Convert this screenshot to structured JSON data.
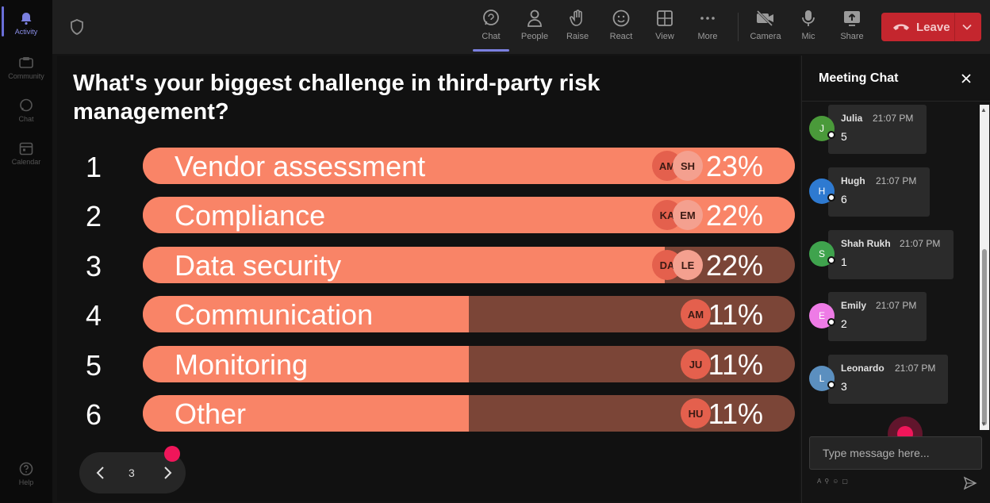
{
  "rail": {
    "items": [
      {
        "label": "Activity",
        "icon": "bell-icon"
      },
      {
        "label": "Community",
        "icon": "community-icon"
      },
      {
        "label": "Chat",
        "icon": "chat-icon"
      },
      {
        "label": "Calendar",
        "icon": "calendar-icon"
      },
      {
        "label": "Help",
        "icon": "help-icon"
      }
    ]
  },
  "toolbar": {
    "chat": "Chat",
    "people": "People",
    "raise": "Raise",
    "react": "React",
    "view": "View",
    "more": "More",
    "camera": "Camera",
    "mic": "Mic",
    "share": "Share",
    "leave": "Leave"
  },
  "poll": {
    "question": "What's your biggest challenge in third-party risk management?",
    "options": [
      {
        "num": "1",
        "label": "Vendor assessment",
        "pct": "23%",
        "fill": 1.0,
        "avatars": [
          "AM",
          "SH"
        ]
      },
      {
        "num": "2",
        "label": "Compliance",
        "pct": "22%",
        "fill": 1.0,
        "avatars": [
          "KA",
          "EM"
        ]
      },
      {
        "num": "3",
        "label": "Data security",
        "pct": "22%",
        "fill": 0.8,
        "avatars": [
          "DA",
          "LE"
        ]
      },
      {
        "num": "4",
        "label": "Communication",
        "pct": "11%",
        "fill": 0.5,
        "avatars": [
          "AM"
        ]
      },
      {
        "num": "5",
        "label": "Monitoring",
        "pct": "11%",
        "fill": 0.5,
        "avatars": [
          "JU"
        ]
      },
      {
        "num": "6",
        "label": "Other",
        "pct": "11%",
        "fill": 0.5,
        "avatars": [
          "HU"
        ]
      }
    ],
    "page": "3"
  },
  "chat": {
    "title": "Meeting Chat",
    "messages": [
      {
        "initial": "J",
        "name": "Julia",
        "time": "21:07 PM",
        "text": "5",
        "color": "#4a9a3a"
      },
      {
        "initial": "H",
        "name": "Hugh",
        "time": "21:07 PM",
        "text": "6",
        "color": "#2e7ad1"
      },
      {
        "initial": "S",
        "name": "Shah Rukh",
        "time": "21:07 PM",
        "text": "1",
        "color": "#3fa34d"
      },
      {
        "initial": "E",
        "name": "Emily",
        "time": "21:07 PM",
        "text": "2",
        "color": "#ee7be6"
      },
      {
        "initial": "L",
        "name": "Leonardo",
        "time": "21:07 PM",
        "text": "3",
        "color": "#5b8fbf"
      }
    ],
    "input_placeholder": "Type message here..."
  },
  "colors": {
    "bar_fill": "#f98467",
    "bar_track": "#7b4537",
    "leave": "#c4262e",
    "accent": "#7b80e0",
    "cursor": "#f0165a"
  }
}
